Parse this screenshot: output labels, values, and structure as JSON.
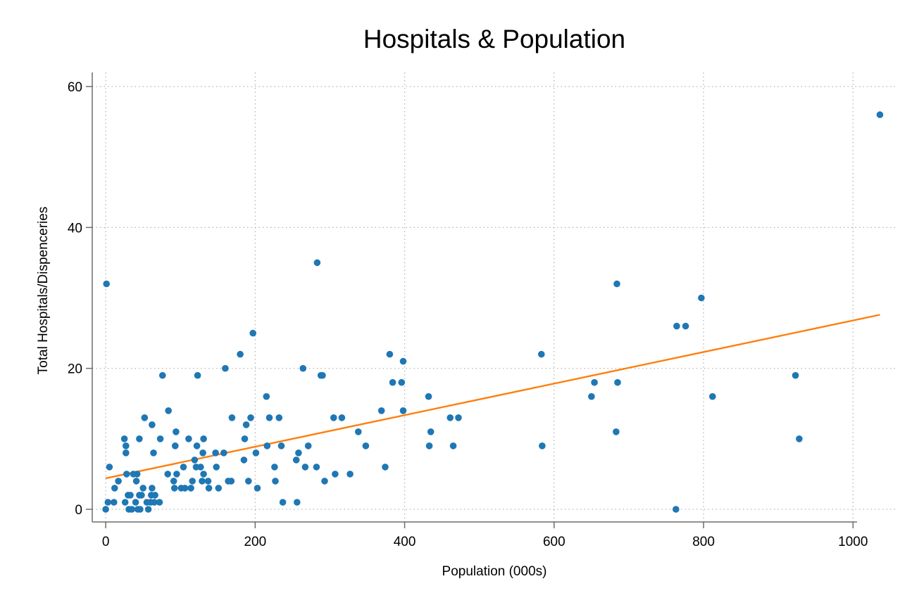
{
  "chart_data": {
    "type": "scatter",
    "title": "Hospitals & Population",
    "xlabel": "Population (000s)",
    "ylabel": "Total Hospitals/Dispenceries",
    "xlim": [
      -18,
      1060
    ],
    "ylim": [
      -1.8,
      62
    ],
    "xticks": [
      0,
      200,
      400,
      600,
      800,
      1000
    ],
    "yticks": [
      0,
      20,
      40,
      60
    ],
    "grid": true,
    "legend": "none",
    "colors": {
      "points": "#1f77b4",
      "fit": "#ff7f0e",
      "axis": "#6d6d6d",
      "grid": "#b5b5b5"
    },
    "series": [
      {
        "type": "scatter",
        "points": [
          [
            0,
            0
          ],
          [
            1,
            32
          ],
          [
            3,
            1
          ],
          [
            5,
            6
          ],
          [
            11,
            1
          ],
          [
            12,
            3
          ],
          [
            17,
            4
          ],
          [
            25,
            10
          ],
          [
            26,
            1
          ],
          [
            27,
            9
          ],
          [
            27,
            8
          ],
          [
            28,
            5
          ],
          [
            30,
            2
          ],
          [
            31,
            0
          ],
          [
            33,
            2
          ],
          [
            35,
            0
          ],
          [
            37,
            5
          ],
          [
            40,
            1
          ],
          [
            41,
            4
          ],
          [
            42,
            5
          ],
          [
            43,
            0
          ],
          [
            45,
            2
          ],
          [
            45,
            10
          ],
          [
            46,
            0
          ],
          [
            48,
            2
          ],
          [
            50,
            3
          ],
          [
            52,
            13
          ],
          [
            55,
            1
          ],
          [
            57,
            0
          ],
          [
            60,
            1
          ],
          [
            61,
            2
          ],
          [
            62,
            3
          ],
          [
            62,
            12
          ],
          [
            64,
            8
          ],
          [
            65,
            1
          ],
          [
            66,
            2
          ],
          [
            72,
            1
          ],
          [
            73,
            10
          ],
          [
            76,
            19
          ],
          [
            83,
            5
          ],
          [
            84,
            14
          ],
          [
            91,
            4
          ],
          [
            92,
            3
          ],
          [
            93,
            9
          ],
          [
            94,
            11
          ],
          [
            95,
            5
          ],
          [
            101,
            3
          ],
          [
            104,
            6
          ],
          [
            106,
            3
          ],
          [
            111,
            10
          ],
          [
            114,
            3
          ],
          [
            116,
            4
          ],
          [
            119,
            7
          ],
          [
            121,
            6
          ],
          [
            122,
            9
          ],
          [
            123,
            19
          ],
          [
            127,
            6
          ],
          [
            129,
            4
          ],
          [
            130,
            8
          ],
          [
            131,
            10
          ],
          [
            131,
            5
          ],
          [
            137,
            4
          ],
          [
            138,
            3
          ],
          [
            147,
            8
          ],
          [
            148,
            6
          ],
          [
            151,
            3
          ],
          [
            158,
            8
          ],
          [
            160,
            20
          ],
          [
            164,
            4
          ],
          [
            168,
            4
          ],
          [
            169,
            13
          ],
          [
            180,
            22
          ],
          [
            185,
            7
          ],
          [
            186,
            10
          ],
          [
            188,
            12
          ],
          [
            191,
            4
          ],
          [
            194,
            13
          ],
          [
            197,
            25
          ],
          [
            201,
            8
          ],
          [
            203,
            3
          ],
          [
            215,
            16
          ],
          [
            216,
            9
          ],
          [
            219,
            13
          ],
          [
            226,
            6
          ],
          [
            227,
            4
          ],
          [
            232,
            13
          ],
          [
            235,
            9
          ],
          [
            237,
            1
          ],
          [
            255,
            7
          ],
          [
            256,
            1
          ],
          [
            258,
            8
          ],
          [
            264,
            20
          ],
          [
            267,
            6
          ],
          [
            271,
            9
          ],
          [
            282,
            6
          ],
          [
            283,
            35
          ],
          [
            288,
            19
          ],
          [
            290,
            19
          ],
          [
            293,
            4
          ],
          [
            305,
            13
          ],
          [
            307,
            5
          ],
          [
            316,
            13
          ],
          [
            327,
            5
          ],
          [
            338,
            11
          ],
          [
            348,
            9
          ],
          [
            369,
            14
          ],
          [
            374,
            6
          ],
          [
            380,
            22
          ],
          [
            384,
            18
          ],
          [
            396,
            18
          ],
          [
            398,
            21
          ],
          [
            398,
            14
          ],
          [
            432,
            16
          ],
          [
            433,
            9
          ],
          [
            435,
            11
          ],
          [
            461,
            13
          ],
          [
            465,
            9
          ],
          [
            472,
            13
          ],
          [
            583,
            22
          ],
          [
            584,
            9
          ],
          [
            650,
            16
          ],
          [
            654,
            18
          ],
          [
            683,
            11
          ],
          [
            684,
            32
          ],
          [
            685,
            18
          ],
          [
            763,
            0
          ],
          [
            764,
            26
          ],
          [
            776,
            26
          ],
          [
            797,
            30
          ],
          [
            812,
            16
          ],
          [
            923,
            19
          ],
          [
            928,
            10
          ],
          [
            1036,
            56
          ]
        ]
      },
      {
        "type": "line",
        "points": [
          [
            0,
            4.4
          ],
          [
            1036,
            27.6
          ]
        ]
      }
    ]
  }
}
